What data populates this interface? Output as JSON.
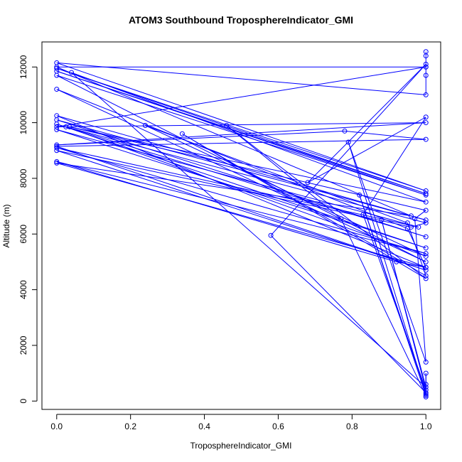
{
  "chart_data": {
    "type": "line",
    "title": "ATOM3 Southbound TroposphereIndicator_GMI",
    "xlabel": "TroposphereIndicator_GMI",
    "ylabel": "Altitude (m)",
    "xlim": [
      -0.04,
      1.04
    ],
    "ylim": [
      -300,
      12900
    ],
    "x_ticks": [
      0.0,
      0.2,
      0.4,
      0.6,
      0.8,
      1.0
    ],
    "x_tick_labels": [
      "0.0",
      "0.2",
      "0.4",
      "0.6",
      "0.8",
      "1.0"
    ],
    "y_ticks": [
      0,
      2000,
      4000,
      6000,
      8000,
      10000,
      12000
    ],
    "y_tick_labels": [
      "0",
      "2000",
      "4000",
      "6000",
      "8000",
      "10000",
      "12000"
    ],
    "grid": false,
    "marker": "open-circle",
    "color": "#0000ff",
    "series": [
      {
        "x": [
          1.0,
          1.0,
          1.0,
          1.0,
          1.0,
          0.0,
          1.0,
          0.0,
          1.0,
          0.0,
          1.0,
          0.0,
          1.0,
          0.0,
          0.95,
          1.0,
          0.0,
          1.0,
          0.0,
          1.0,
          0.0,
          1.0,
          0.0,
          0.98,
          0.0,
          1.0,
          0.0,
          0.92,
          1.0,
          0.0,
          0.96,
          0.0,
          1.0,
          0.0,
          1.0,
          0.0,
          0.78,
          1.0,
          0.0,
          1.0,
          0.0,
          0.96,
          1.0,
          0.025,
          1.0,
          0.24,
          0.95,
          1.0,
          0.34,
          1.0,
          0.46,
          0.77,
          1.0,
          0.82,
          1.0,
          0.58,
          1.0,
          0.68,
          1.0,
          0.83,
          1.0,
          0.88,
          1.0,
          0.04,
          1.0,
          0.035,
          1.0,
          0.97,
          1.0,
          0.79,
          1.0,
          1.0,
          1.0,
          1.0
        ],
        "y": [
          12550,
          12400,
          12000,
          11700,
          11000,
          12150,
          7550,
          11950,
          7450,
          11850,
          7400,
          11700,
          5000,
          11200,
          6200,
          4800,
          10250,
          6500,
          10100,
          5900,
          9950,
          5500,
          9750,
          6250,
          9100,
          5300,
          8600,
          5000,
          4800,
          8550,
          6650,
          12000,
          12000,
          9850,
          10000,
          9200,
          9700,
          9400,
          9150,
          4700,
          9000,
          6250,
          6400,
          9850,
          5200,
          9900,
          6400,
          4500,
          9600,
          4400,
          9900,
          6550,
          200,
          7400,
          300,
          5950,
          12100,
          7850,
          10200,
          6700,
          400,
          6500,
          500,
          11800,
          7150,
          9850,
          6850,
          6550,
          1400,
          9300,
          250,
          150,
          1000,
          600
        ]
      }
    ]
  }
}
